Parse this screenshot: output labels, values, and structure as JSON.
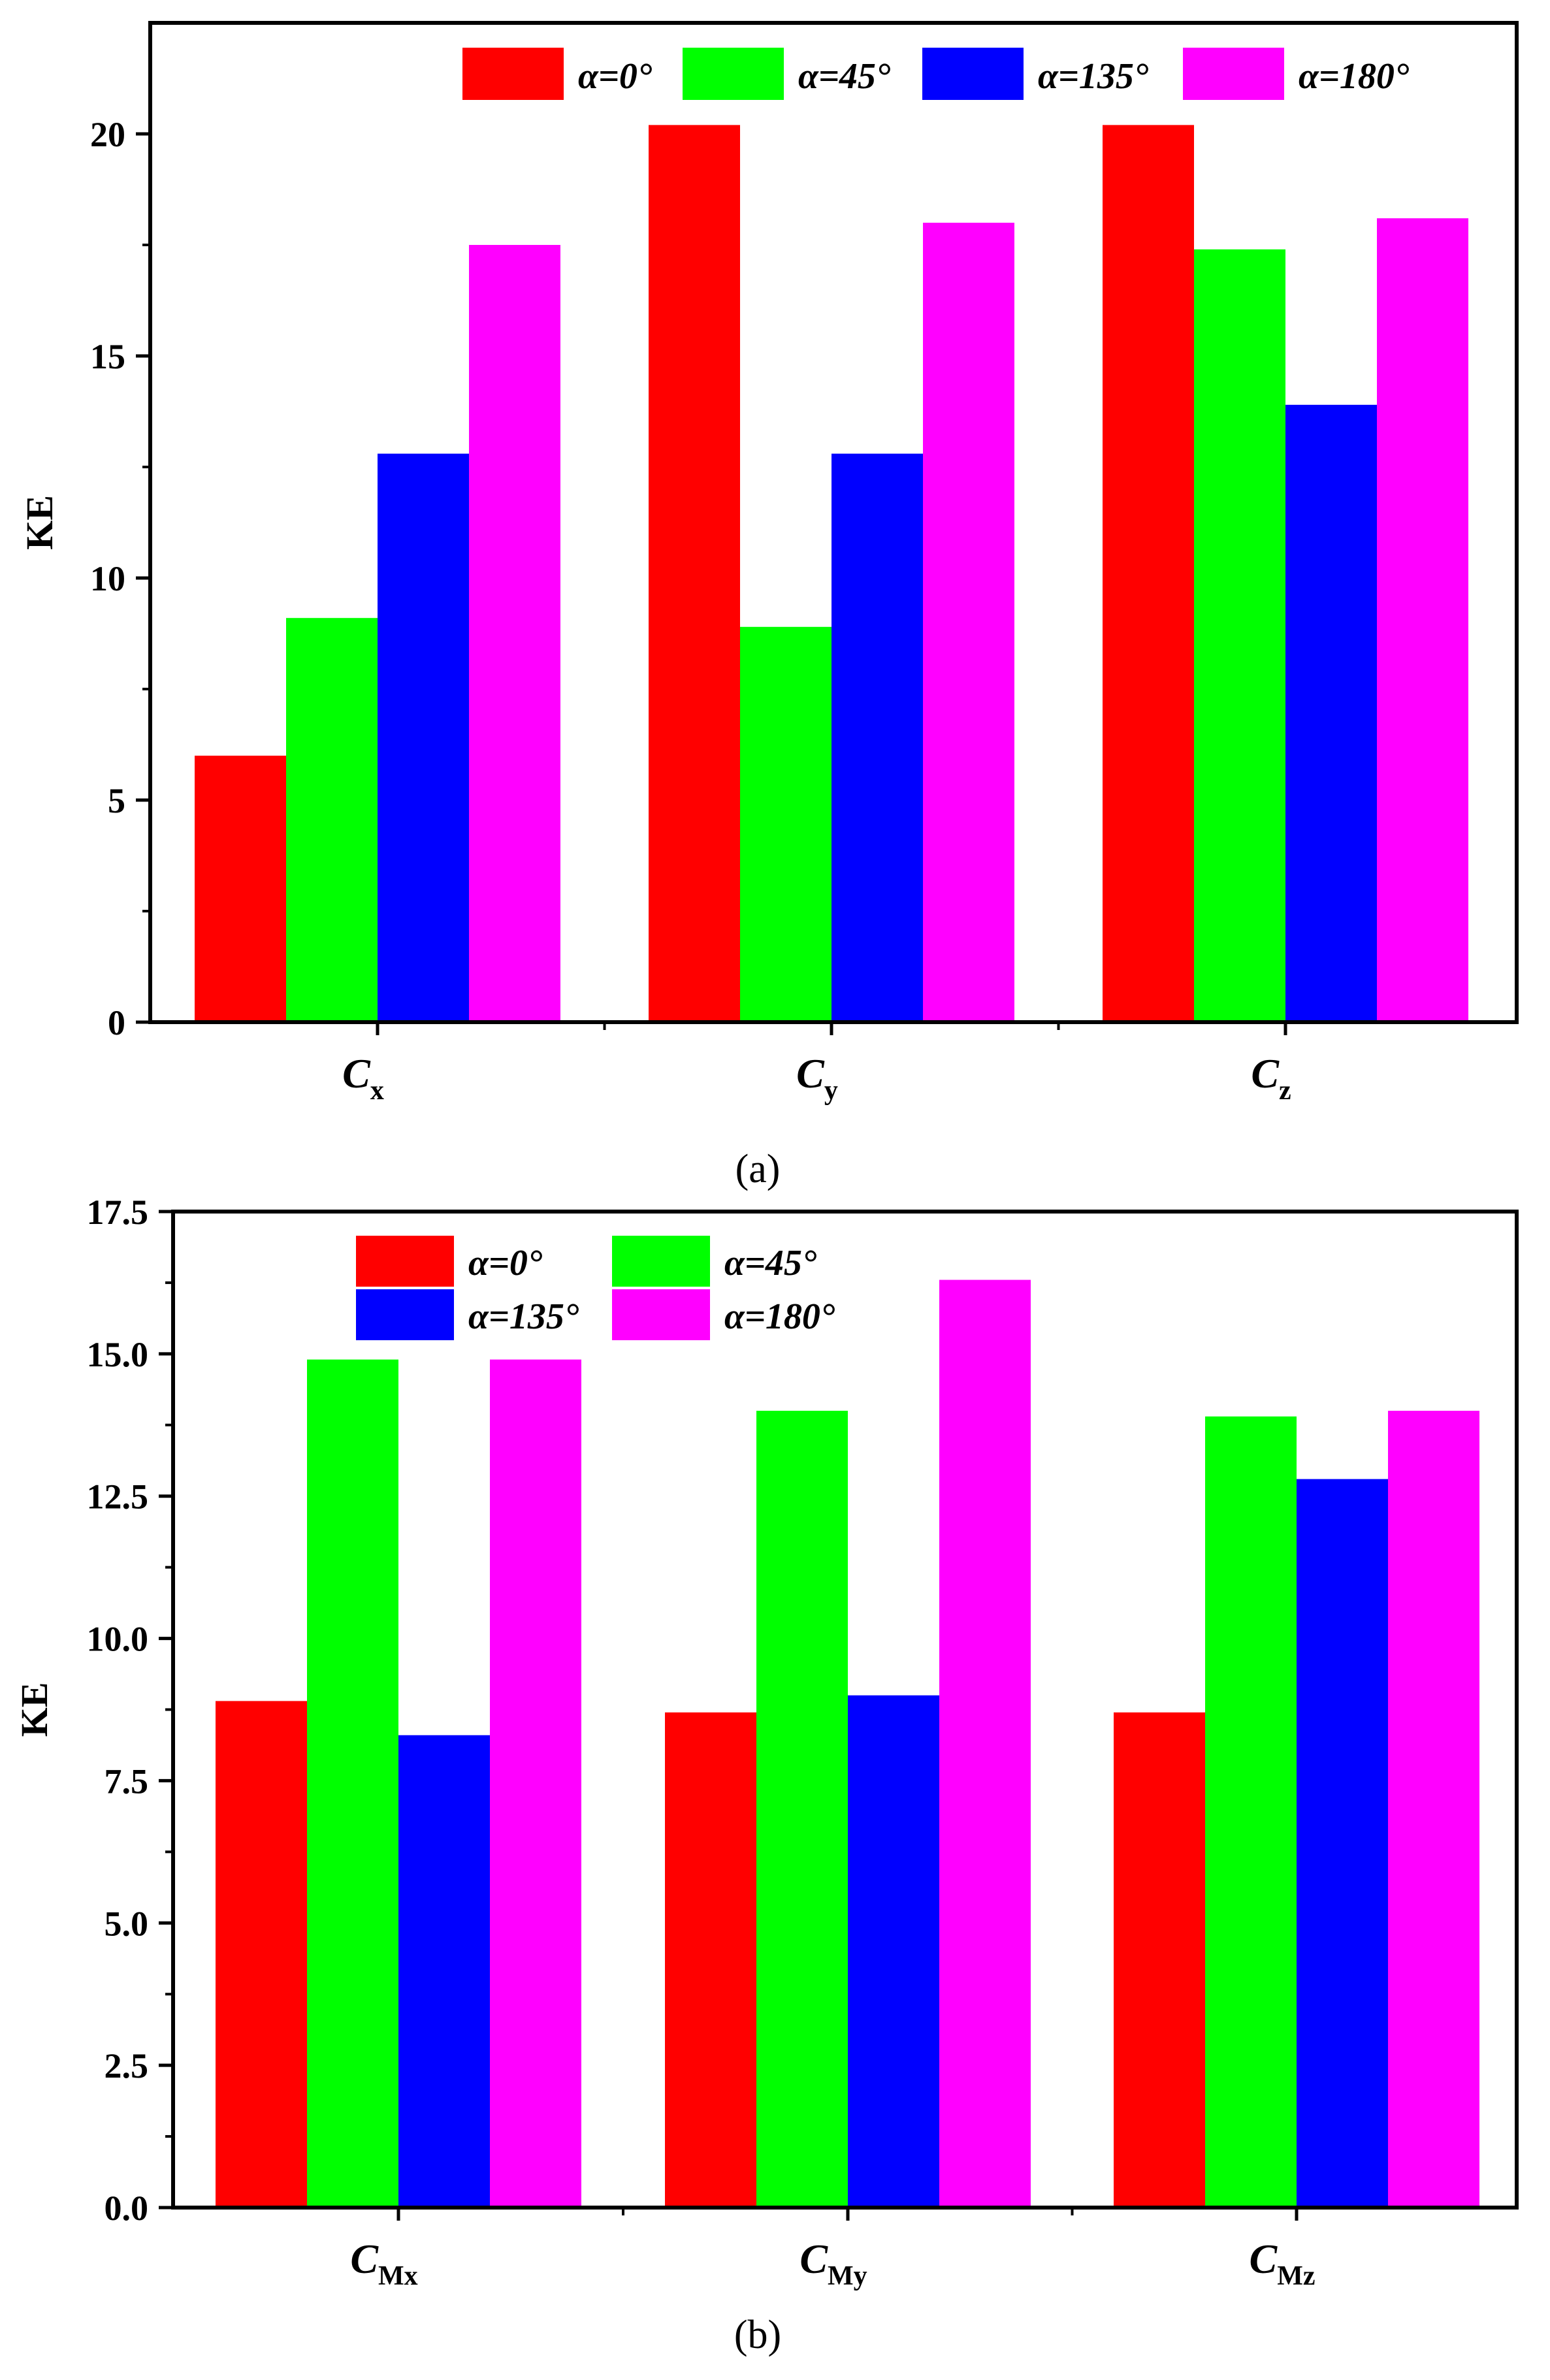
{
  "chart_data": [
    {
      "type": "bar",
      "panel": "a",
      "caption": "(a)",
      "ylabel": "KE",
      "xlabel": "",
      "ylim": [
        0,
        22.5
      ],
      "yticks": [
        0,
        5,
        10,
        15,
        20
      ],
      "categories": [
        {
          "main": "C",
          "sub": "x"
        },
        {
          "main": "C",
          "sub": "y"
        },
        {
          "main": "C",
          "sub": "z"
        }
      ],
      "legend_position": "top-right",
      "legend_layout": "one-row",
      "series": [
        {
          "name": "α=0°",
          "color": "#ff0000",
          "values": [
            6.0,
            20.2,
            20.2
          ]
        },
        {
          "name": "α=45°",
          "color": "#00ff00",
          "values": [
            9.1,
            8.9,
            17.4
          ]
        },
        {
          "name": "α=135°",
          "color": "#0000ff",
          "values": [
            12.8,
            12.8,
            13.9
          ]
        },
        {
          "name": "α=180°",
          "color": "#ff00ff",
          "values": [
            17.5,
            18.0,
            18.1
          ]
        }
      ]
    },
    {
      "type": "bar",
      "panel": "b",
      "caption": "(b)",
      "ylabel": "KE",
      "xlabel": "",
      "ylim": [
        0,
        17.5
      ],
      "yticks": [
        "0.0",
        "2.5",
        "5.0",
        "7.5",
        "10.0",
        "12.5",
        "15.0",
        "17.5"
      ],
      "categories": [
        {
          "main": "C",
          "sub": "Mx"
        },
        {
          "main": "C",
          "sub": "My"
        },
        {
          "main": "C",
          "sub": "Mz"
        }
      ],
      "legend_position": "top-left",
      "legend_layout": "two-rows",
      "series": [
        {
          "name": "α=0°",
          "color": "#ff0000",
          "values": [
            8.9,
            8.7,
            8.7
          ]
        },
        {
          "name": "α=45°",
          "color": "#00ff00",
          "values": [
            14.9,
            14.0,
            13.9
          ]
        },
        {
          "name": "α=135°",
          "color": "#0000ff",
          "values": [
            8.3,
            9.0,
            12.8
          ]
        },
        {
          "name": "α=180°",
          "color": "#ff00ff",
          "values": [
            14.9,
            16.3,
            14.0
          ]
        }
      ]
    }
  ]
}
